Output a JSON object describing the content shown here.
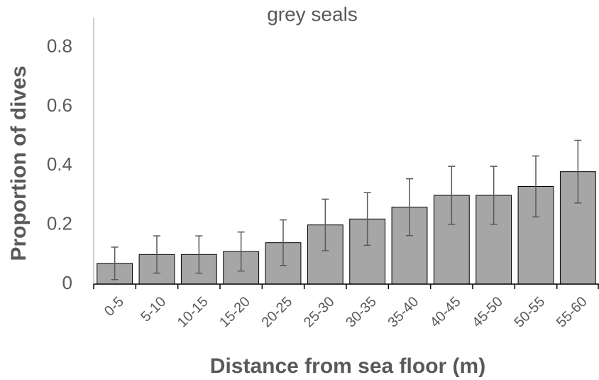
{
  "chart_data": {
    "type": "bar",
    "title": "grey seals",
    "x_label": "Distance from sea floor (m)",
    "y_label": "Proportion of dives",
    "categories": [
      "0-5",
      "5-10",
      "10-15",
      "15-20",
      "20-25",
      "25-30",
      "30-35",
      "35-40",
      "40-45",
      "45-50",
      "50-55",
      "55-60"
    ],
    "values": [
      0.07,
      0.1,
      0.1,
      0.11,
      0.14,
      0.2,
      0.22,
      0.26,
      0.3,
      0.3,
      0.33,
      0.38
    ],
    "errors": [
      0.055,
      0.063,
      0.063,
      0.066,
      0.077,
      0.087,
      0.089,
      0.096,
      0.098,
      0.098,
      0.103,
      0.106
    ],
    "color": "#a6a6a6",
    "error_color": "#595959",
    "ylim": [
      0,
      0.9
    ],
    "yticks": [
      0,
      0.2,
      0.4,
      0.6,
      0.8
    ],
    "grid": false
  }
}
